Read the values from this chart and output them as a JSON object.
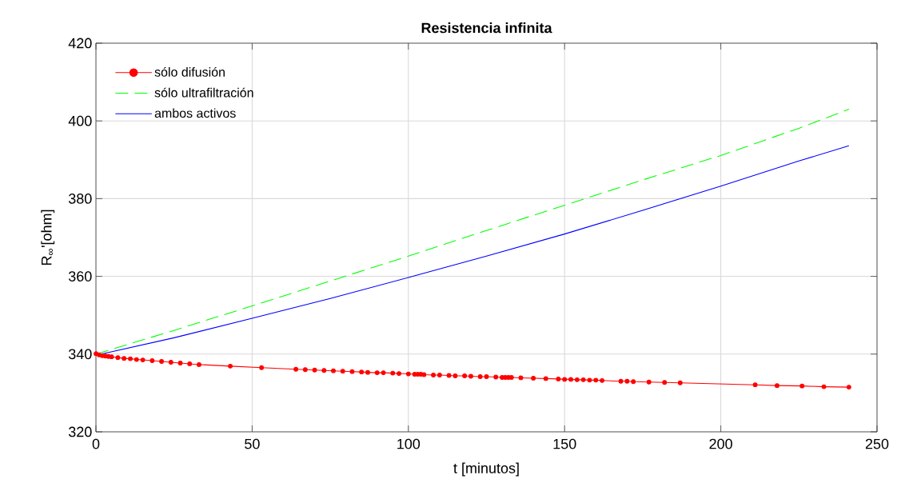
{
  "chart_data": {
    "type": "line",
    "title": "Resistencia infinita",
    "xlabel": "t [minutos]",
    "ylabel": "R$_{∞}$'[ohm]",
    "xlim": [
      0,
      250
    ],
    "ylim": [
      320,
      420
    ],
    "xticks": [
      0,
      50,
      100,
      150,
      200,
      250
    ],
    "yticks": [
      320,
      340,
      360,
      380,
      400,
      420
    ],
    "grid": true,
    "legend": "top left",
    "series": [
      {
        "name": "sólo difusión",
        "color": "#ff0000",
        "marker": "circle",
        "line_style": "solid",
        "x": [
          0,
          1,
          2,
          3,
          4,
          5,
          7,
          9,
          11,
          13,
          15,
          18,
          21,
          24,
          27,
          30,
          33,
          43,
          53,
          64,
          67,
          70,
          73,
          76,
          79,
          82,
          85,
          87,
          90,
          92,
          95,
          97,
          100,
          102,
          103,
          104,
          105,
          108,
          110,
          113,
          115,
          118,
          120,
          123,
          125,
          128,
          130,
          131,
          132,
          133,
          136,
          140,
          144,
          148,
          150,
          152,
          154,
          156,
          158,
          160,
          162,
          168,
          170,
          172,
          177,
          182,
          187,
          211,
          218,
          226,
          233,
          241
        ],
        "values": [
          340.1,
          339.8,
          339.6,
          339.5,
          339.4,
          339.3,
          339.1,
          338.9,
          338.8,
          338.6,
          338.5,
          338.3,
          338.1,
          337.9,
          337.7,
          337.5,
          337.3,
          336.9,
          336.5,
          336.1,
          336.0,
          335.9,
          335.8,
          335.7,
          335.6,
          335.5,
          335.4,
          335.3,
          335.2,
          335.2,
          335.1,
          335.0,
          334.9,
          334.8,
          334.8,
          334.8,
          334.7,
          334.6,
          334.6,
          334.5,
          334.4,
          334.4,
          334.3,
          334.2,
          334.2,
          334.1,
          334.0,
          334.0,
          334.0,
          334.0,
          333.9,
          333.8,
          333.7,
          333.6,
          333.5,
          333.5,
          333.4,
          333.4,
          333.3,
          333.3,
          333.2,
          333.0,
          333.0,
          332.9,
          332.8,
          332.7,
          332.6,
          332.1,
          331.9,
          331.8,
          331.6,
          331.5
        ]
      },
      {
        "name": "sólo ultrafiltración",
        "color": "#00ff00",
        "marker": "none",
        "line_style": "dashed",
        "x": [
          0,
          25,
          50,
          75,
          100,
          125,
          150,
          175,
          200,
          225,
          241
        ],
        "values": [
          340,
          346.1,
          352.4,
          358.8,
          365.2,
          371.8,
          378.3,
          384.8,
          391.1,
          398.1,
          403
        ]
      },
      {
        "name": "ambos activos",
        "color": "#0000ff",
        "marker": "none",
        "line_style": "solid",
        "x": [
          0,
          25,
          50,
          75,
          100,
          125,
          150,
          175,
          200,
          225,
          241
        ],
        "values": [
          339.7,
          344.2,
          349.2,
          354.3,
          359.7,
          365.2,
          370.9,
          377.0,
          383.2,
          389.7,
          393.6
        ]
      }
    ]
  }
}
